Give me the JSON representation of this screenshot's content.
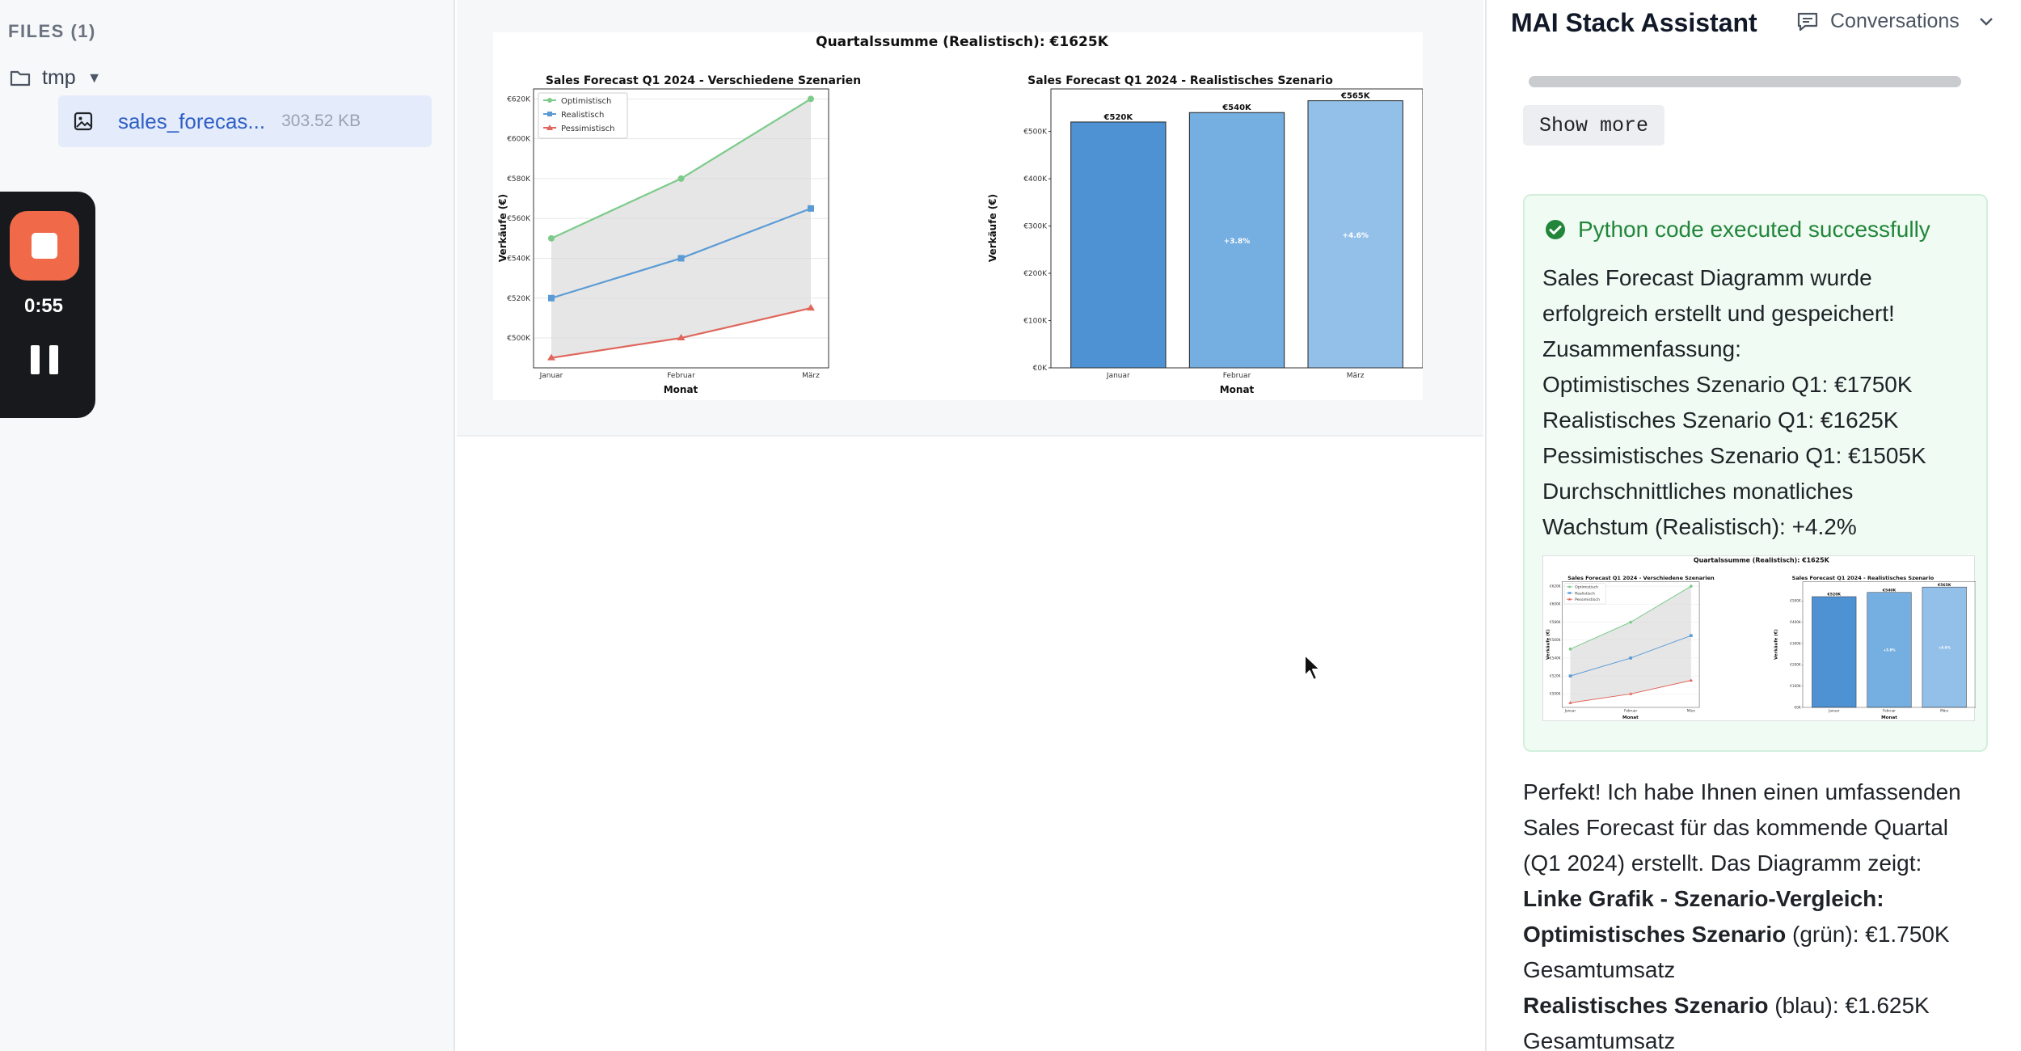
{
  "files_panel": {
    "header": "FILES (1)",
    "folder": {
      "name": "tmp",
      "caret": "▼",
      "icon": "folder-icon"
    },
    "files": [
      {
        "name": "sales_forecas...",
        "size": "303.52 KB",
        "icon": "image-icon"
      }
    ]
  },
  "recorder": {
    "time": "0:55",
    "stop_icon": "stop-icon",
    "pause_icon": "pause-icon"
  },
  "chart_image": {
    "suptitle": "Quartalssumme (Realistisch): €1625K",
    "charts": [
      {
        "title": "Sales Forecast Q1 2024 - Verschiedene Szenarien",
        "ylabel": "Verkäufe (€)",
        "xlabel": "Monat",
        "yticks": [
          "€500K",
          "€520K",
          "€540K",
          "€560K",
          "€580K",
          "€600K",
          "€620K"
        ],
        "xticks": [
          "Januar",
          "Februar",
          "März"
        ],
        "legend": [
          "Optimistisch",
          "Realistisch",
          "Pessimistisch"
        ]
      },
      {
        "title": "Sales Forecast Q1 2024 - Realistisches Szenario",
        "ylabel": "Verkäufe (€)",
        "xlabel": "Monat",
        "yticks": [
          "€0K",
          "€100K",
          "€200K",
          "€300K",
          "€400K",
          "€500K"
        ],
        "xticks": [
          "Januar",
          "Februar",
          "März"
        ],
        "bar_labels": [
          "€520K",
          "€540K",
          "€565K"
        ],
        "growth_labels": [
          "+3.8%",
          "+4.6%"
        ]
      }
    ]
  },
  "chart_data": [
    {
      "type": "line",
      "title": "Sales Forecast Q1 2024 - Verschiedene Szenarien",
      "xlabel": "Monat",
      "ylabel": "Verkäufe (€)",
      "categories": [
        "Januar",
        "Februar",
        "März"
      ],
      "series": [
        {
          "name": "Optimistisch",
          "values": [
            550,
            580,
            620
          ],
          "color": "#7ccb8a"
        },
        {
          "name": "Realistisch",
          "values": [
            520,
            540,
            565
          ],
          "color": "#5b9bd5"
        },
        {
          "name": "Pessimistisch",
          "values": [
            490,
            500,
            515
          ],
          "color": "#e0665c"
        }
      ],
      "ylim": [
        485,
        625
      ],
      "y_unit": "€K",
      "grid": true,
      "legend": "top-left",
      "fill_between": [
        "Pessimistisch",
        "Optimistisch"
      ]
    },
    {
      "type": "bar",
      "title": "Sales Forecast Q1 2024 - Realistisches Szenario",
      "xlabel": "Monat",
      "ylabel": "Verkäufe (€)",
      "categories": [
        "Januar",
        "Februar",
        "März"
      ],
      "values": [
        520,
        540,
        565
      ],
      "colors": [
        "#4f92d3",
        "#75aee0",
        "#93c0e8"
      ],
      "ylim": [
        0,
        590
      ],
      "y_unit": "€K"
    }
  ],
  "chat": {
    "title": "MAI Stack Assistant",
    "conversations_label": "Conversations",
    "conversations_icon": "chat-bubble-icon",
    "show_more": "Show more",
    "success": {
      "title": "Python code executed successfully",
      "icon": "check-circle-icon",
      "color": "#22863a",
      "lines": [
        "Sales Forecast Diagramm wurde",
        "erfolgreich erstellt und gespeichert!",
        "Zusammenfassung:",
        "Optimistisches Szenario Q1: €1750K",
        "Realistisches Szenario Q1: €1625K",
        "Pessimistisches Szenario Q1: €1505K",
        "Durchschnittliches monatliches",
        "Wachstum (Realistisch): +4.2%"
      ]
    },
    "reply": {
      "intro": [
        "Perfekt! Ich habe Ihnen einen umfassenden",
        "Sales Forecast für das kommende Quartal",
        "(Q1 2024) erstellt. Das Diagramm zeigt:"
      ],
      "heading": "Linke Grafik - Szenario-Vergleich:",
      "item1_bold": "Optimistisches Szenario",
      "item1_rest": " (grün): €1.750K",
      "item1_cont": "Gesamtumsatz",
      "item2_bold": "Realistisches Szenario",
      "item2_rest": " (blau): €1.625K",
      "item2_cont": "Gesamtumsatz"
    }
  }
}
